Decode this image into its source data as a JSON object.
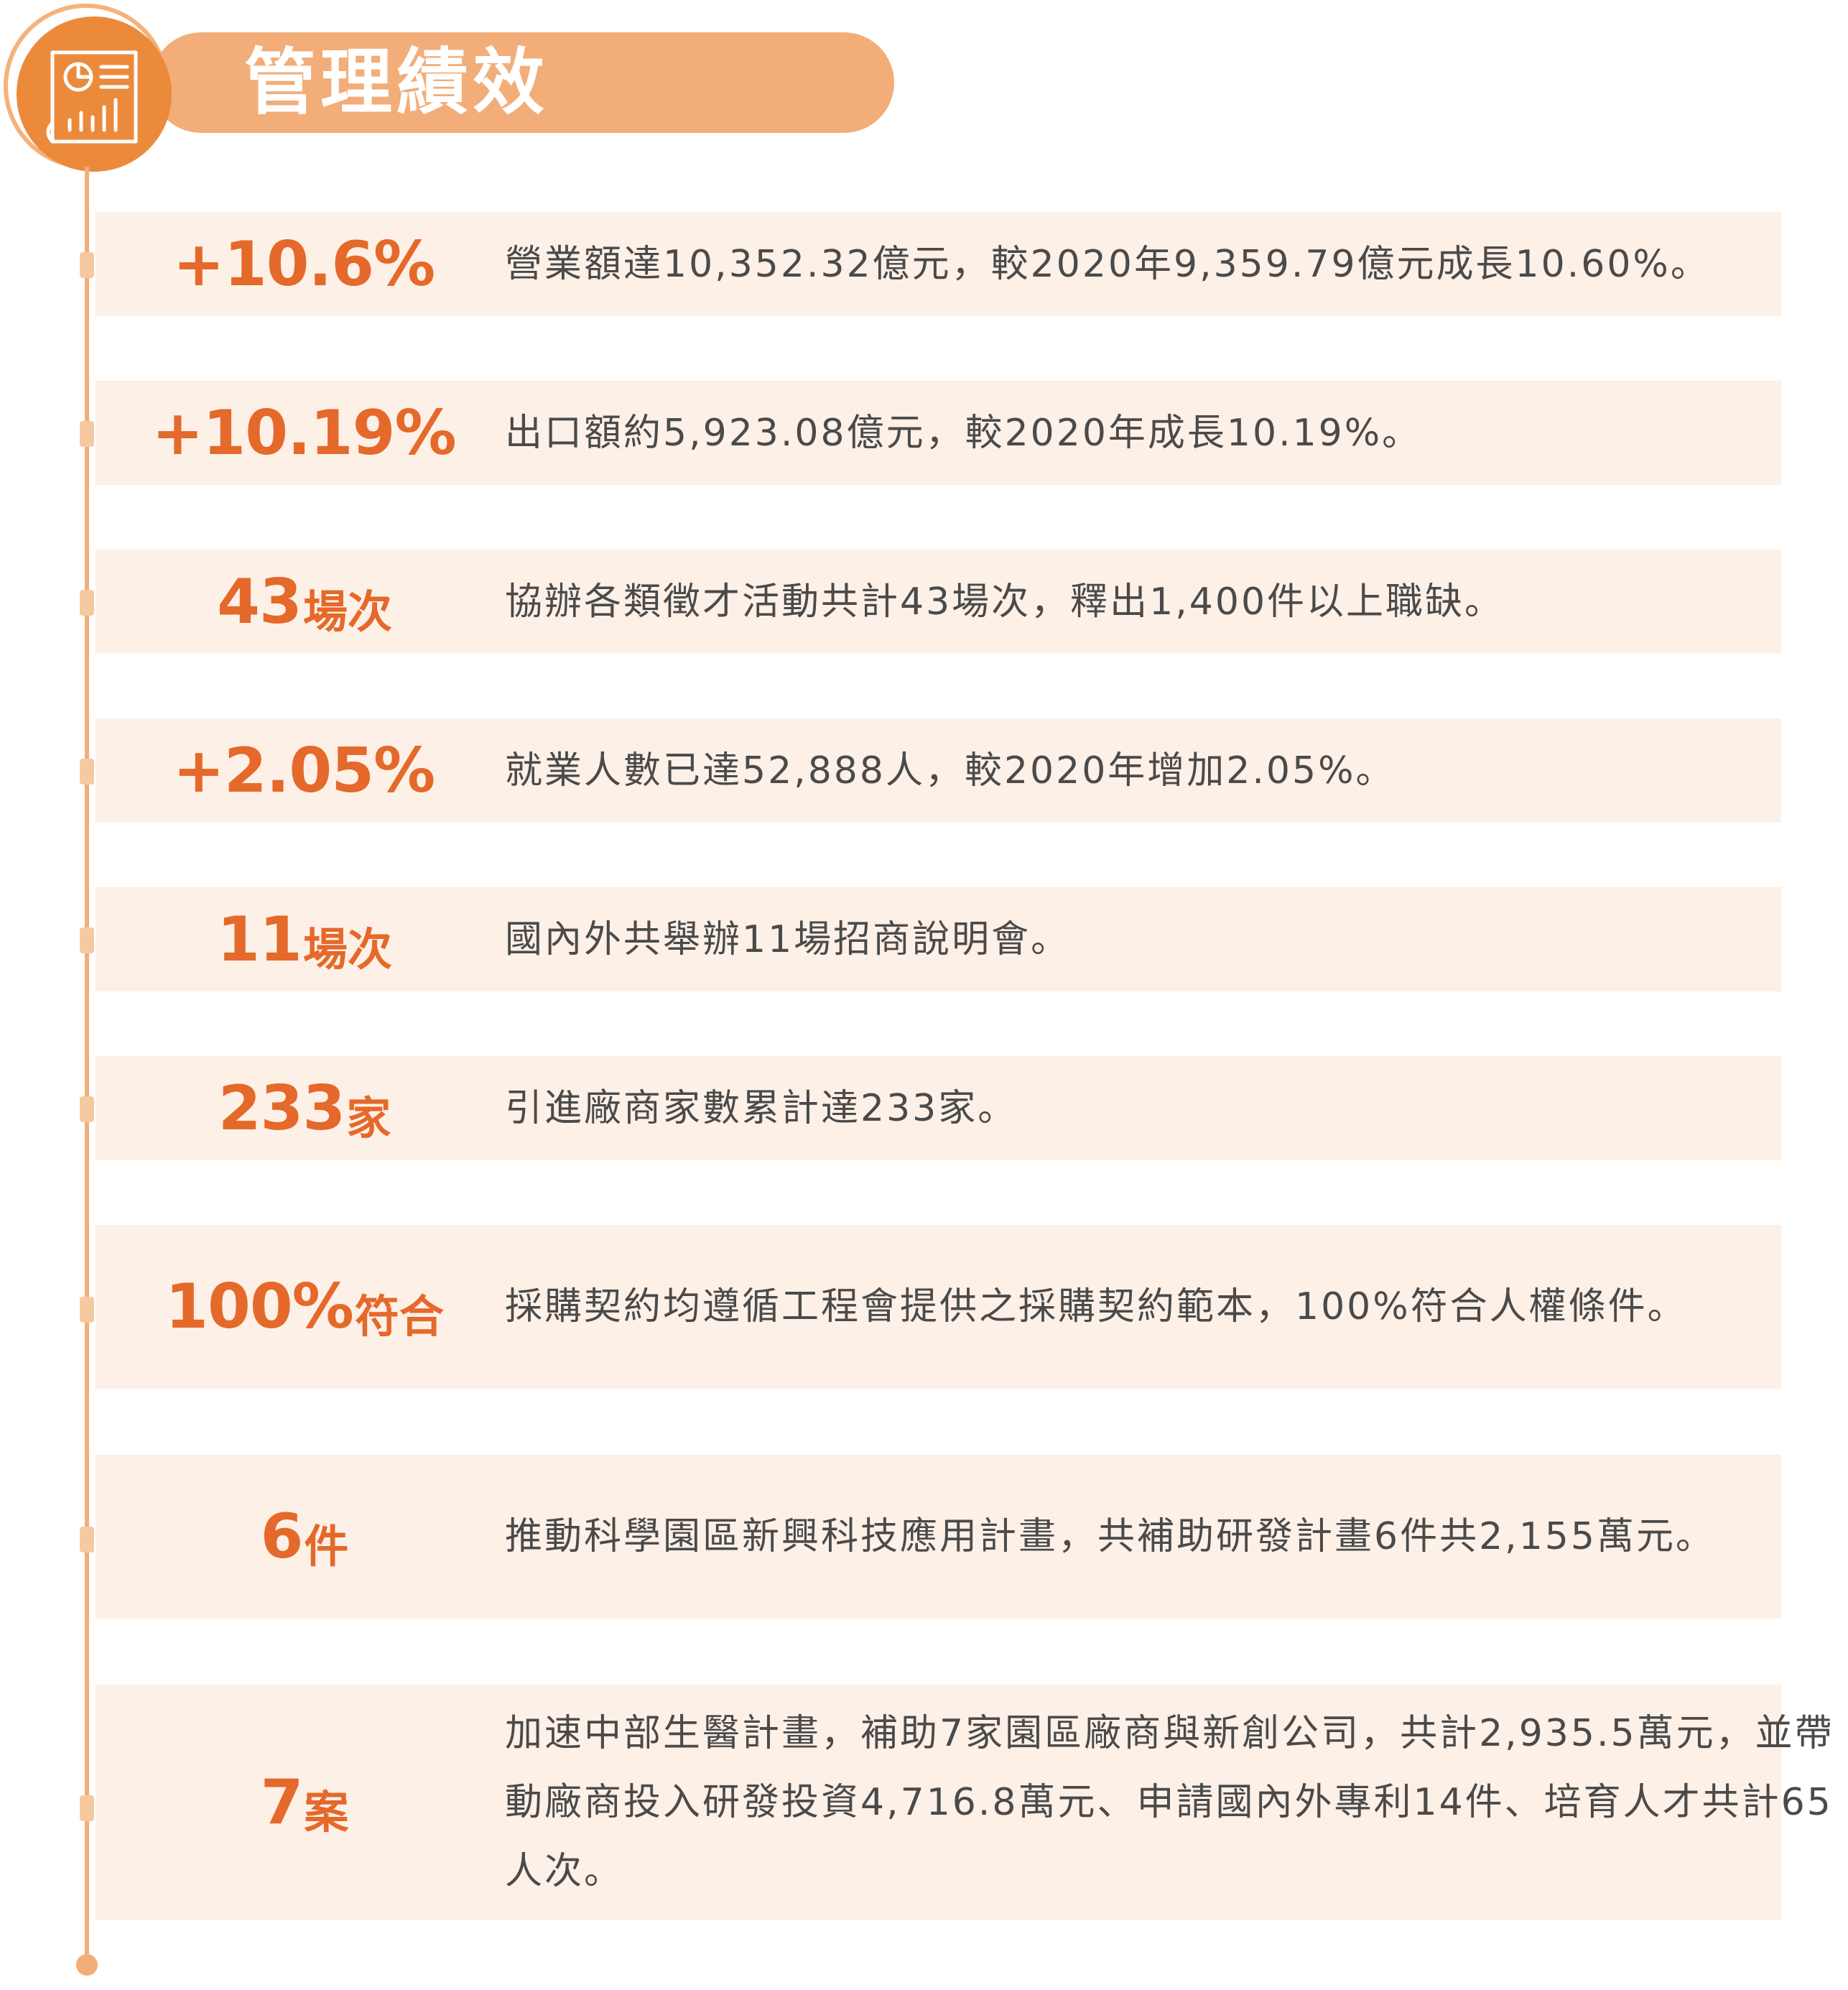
{
  "header": {
    "title": "管理績效",
    "icon": "report-chart-icon"
  },
  "colors": {
    "accent": "#e4692a",
    "title_bar": "#f2ad79",
    "icon_circle": "#ec8a3c",
    "row_background": "#fdf0e7",
    "text": "#4a4a4a"
  },
  "items": [
    {
      "num": "+10.6%",
      "unit": "",
      "desc": "營業額達10,352.32億元，較2020年9,359.79億元成長10.60%。"
    },
    {
      "num": "+10.19%",
      "unit": "",
      "desc": "出口額約5,923.08億元，較2020年成長10.19%。"
    },
    {
      "num": "43",
      "unit": "場次",
      "desc": "協辦各類徵才活動共計43場次，釋出1,400件以上職缺。"
    },
    {
      "num": "+2.05%",
      "unit": "",
      "desc": "就業人數已達52,888人，較2020年增加2.05%。"
    },
    {
      "num": "11",
      "unit": "場次",
      "desc": "國內外共舉辦11場招商說明會。"
    },
    {
      "num": "233",
      "unit": "家",
      "desc": "引進廠商家數累計達233家。"
    },
    {
      "num": "100%",
      "unit": "符合",
      "desc": "採購契約均遵循工程會提供之採購契約範本，100%符合人權條件。"
    },
    {
      "num": "6",
      "unit": "件",
      "desc": "推動科學園區新興科技應用計畫，共補助研發計畫6件共2,155萬元。"
    },
    {
      "num": "7",
      "unit": "案",
      "desc": "加速中部生醫計畫，補助7家園區廠商與新創公司，共計2,935.5萬元，並帶動廠商投入研發投資4,716.8萬元、申請國內外專利14件、培育人才共計65人次。"
    }
  ]
}
